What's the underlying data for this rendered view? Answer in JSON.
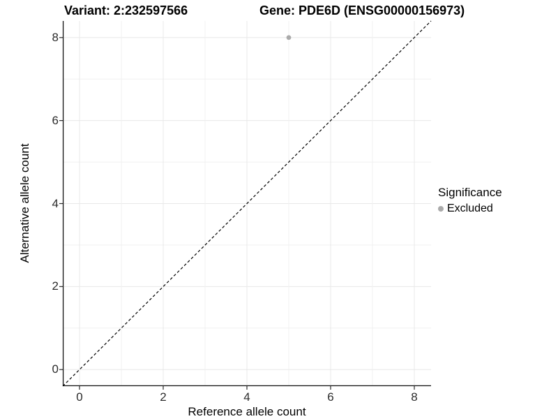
{
  "titles": {
    "variant": "Variant: 2:232597566",
    "gene": "Gene: PDE6D (ENSG00000156973)"
  },
  "chart_data": {
    "type": "scatter",
    "title_left": "Variant: 2:232597566",
    "title_right": "Gene: PDE6D (ENSG00000156973)",
    "xlabel": "Reference allele count",
    "ylabel": "Alternative allele count",
    "xlim": [
      -0.4,
      8.4
    ],
    "ylim": [
      -0.4,
      8.4
    ],
    "x_ticks": [
      0,
      2,
      4,
      6,
      8
    ],
    "y_ticks": [
      0,
      2,
      4,
      6,
      8
    ],
    "grid": "on, lines at every integer 0-8 on both axes",
    "identity_line": {
      "type": "abline y=x",
      "style": "dashed",
      "color": "#000000",
      "from": [
        -0.4,
        -0.4
      ],
      "to": [
        8.4,
        8.4
      ]
    },
    "series": [
      {
        "name": "Excluded",
        "color": "#aaaaaa",
        "points": [
          [
            5,
            8
          ]
        ]
      }
    ],
    "legend": {
      "title": "Significance",
      "position": "right",
      "items": [
        {
          "label": "Excluded",
          "color": "#aaaaaa"
        }
      ]
    },
    "style": {
      "grid_major_color": "#e8e8e8",
      "grid_minor_color": "#f0f0f0",
      "axis_line_color": "#111111",
      "tick_color": "#2b2b2b",
      "point_radius": 3.4,
      "legend_dot_color": "#aaaaaa"
    }
  }
}
